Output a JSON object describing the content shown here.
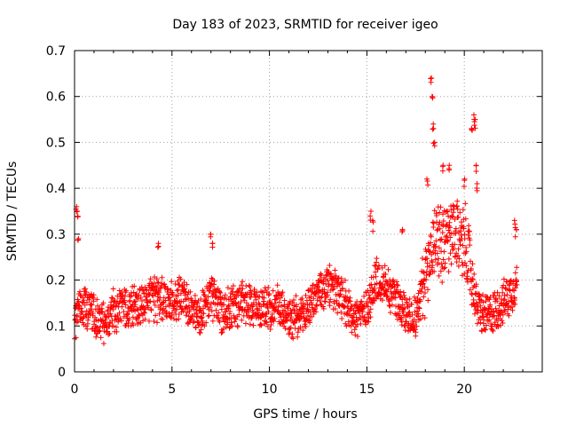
{
  "chart_data": {
    "type": "scatter",
    "title": "Day 183 of 2023, SRMTID for receiver igeo",
    "xlabel": "GPS time / hours",
    "ylabel": "SRMTID / TECUs",
    "xlim": [
      0,
      24
    ],
    "ylim": [
      0,
      0.7
    ],
    "x_ticks": [
      0,
      5,
      10,
      15,
      20
    ],
    "x_tick_labels": [
      "0",
      "5",
      "10",
      "15",
      "20"
    ],
    "y_ticks": [
      0,
      0.1,
      0.2,
      0.3,
      0.4,
      0.5,
      0.6,
      0.7
    ],
    "y_tick_labels": [
      "0",
      "0.1",
      "0.2",
      "0.3",
      "0.4",
      "0.5",
      "0.6",
      "0.7"
    ],
    "grid": true,
    "marker": "+",
    "series": [
      {
        "name": "SRMTID",
        "color": "#ff0000",
        "trend": [
          [
            0.0,
            0.12
          ],
          [
            0.2,
            0.13
          ],
          [
            0.5,
            0.14
          ],
          [
            1.0,
            0.12
          ],
          [
            1.5,
            0.11
          ],
          [
            2.0,
            0.13
          ],
          [
            2.5,
            0.14
          ],
          [
            3.0,
            0.14
          ],
          [
            3.5,
            0.15
          ],
          [
            4.0,
            0.16
          ],
          [
            4.5,
            0.16
          ],
          [
            5.0,
            0.15
          ],
          [
            5.5,
            0.16
          ],
          [
            6.0,
            0.14
          ],
          [
            6.5,
            0.13
          ],
          [
            7.0,
            0.17
          ],
          [
            7.5,
            0.13
          ],
          [
            8.0,
            0.14
          ],
          [
            8.5,
            0.15
          ],
          [
            9.0,
            0.15
          ],
          [
            9.5,
            0.14
          ],
          [
            10.0,
            0.14
          ],
          [
            10.5,
            0.15
          ],
          [
            11.0,
            0.12
          ],
          [
            11.5,
            0.11
          ],
          [
            12.0,
            0.14
          ],
          [
            12.5,
            0.17
          ],
          [
            13.0,
            0.19
          ],
          [
            13.5,
            0.17
          ],
          [
            14.0,
            0.14
          ],
          [
            14.5,
            0.12
          ],
          [
            15.0,
            0.14
          ],
          [
            15.5,
            0.2
          ],
          [
            16.0,
            0.19
          ],
          [
            16.5,
            0.16
          ],
          [
            17.0,
            0.13
          ],
          [
            17.5,
            0.12
          ],
          [
            18.0,
            0.2
          ],
          [
            18.5,
            0.3
          ],
          [
            19.0,
            0.28
          ],
          [
            19.5,
            0.3
          ],
          [
            20.0,
            0.29
          ],
          [
            20.3,
            0.23
          ],
          [
            20.6,
            0.15
          ],
          [
            21.0,
            0.12
          ],
          [
            21.5,
            0.13
          ],
          [
            22.0,
            0.15
          ],
          [
            22.5,
            0.18
          ],
          [
            22.7,
            0.2
          ]
        ],
        "spikes": [
          [
            0.1,
            0.36
          ],
          [
            0.15,
            0.35
          ],
          [
            0.2,
            0.29
          ],
          [
            4.3,
            0.28
          ],
          [
            7.0,
            0.3
          ],
          [
            7.1,
            0.28
          ],
          [
            15.2,
            0.35
          ],
          [
            15.3,
            0.33
          ],
          [
            16.8,
            0.31
          ],
          [
            18.1,
            0.42
          ],
          [
            18.3,
            0.64
          ],
          [
            18.35,
            0.6
          ],
          [
            18.4,
            0.54
          ],
          [
            18.45,
            0.5
          ],
          [
            18.9,
            0.45
          ],
          [
            19.2,
            0.45
          ],
          [
            20.4,
            0.53
          ],
          [
            20.5,
            0.56
          ],
          [
            20.55,
            0.55
          ],
          [
            20.6,
            0.45
          ],
          [
            20.65,
            0.41
          ],
          [
            20.0,
            0.42
          ],
          [
            22.6,
            0.33
          ],
          [
            22.65,
            0.31
          ]
        ]
      }
    ]
  }
}
